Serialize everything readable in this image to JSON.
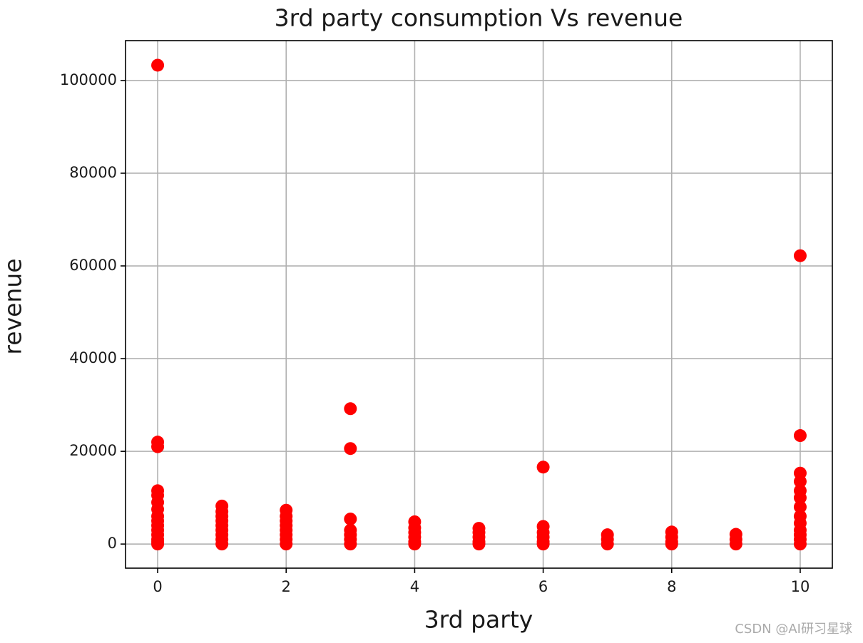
{
  "chart_data": {
    "type": "scatter",
    "title": "3rd party consumption Vs revenue",
    "x_label": "3rd party",
    "y_label": "revenue",
    "watermark": "CSDN @AI研习星球",
    "color": "#ff0000",
    "grid": true,
    "xlim": [
      -0.5,
      10.5
    ],
    "ylim": [
      -5200,
      108600
    ],
    "xticks": [
      0,
      2,
      4,
      6,
      8,
      10
    ],
    "yticks": [
      0,
      20000,
      40000,
      60000,
      80000,
      100000
    ],
    "x": [
      0,
      0,
      0,
      0,
      0,
      0,
      0,
      0,
      0,
      0,
      0,
      0,
      0,
      0,
      0,
      1,
      1,
      1,
      1,
      1,
      1,
      1,
      1,
      1,
      2,
      2,
      2,
      2,
      2,
      2,
      2,
      2,
      3,
      3,
      3,
      3,
      3,
      3,
      3,
      4,
      4,
      4,
      4,
      4,
      4,
      5,
      5,
      5,
      5,
      5,
      6,
      6,
      6,
      6,
      6,
      6,
      7,
      7,
      7,
      8,
      8,
      8,
      8,
      9,
      9,
      9,
      10,
      10,
      10,
      10,
      10,
      10,
      10,
      10,
      10,
      10,
      10,
      10,
      10
    ],
    "values": [
      103300,
      22000,
      21000,
      11500,
      10500,
      9000,
      7500,
      6000,
      5000,
      4000,
      3000,
      2000,
      1000,
      500,
      0,
      8200,
      7000,
      6000,
      5000,
      4000,
      3000,
      2000,
      1000,
      0,
      7300,
      6000,
      5000,
      4000,
      3000,
      2000,
      1000,
      0,
      29200,
      20600,
      5400,
      3000,
      2000,
      1000,
      0,
      4800,
      3500,
      2500,
      1500,
      500,
      0,
      3400,
      2500,
      1500,
      500,
      0,
      16600,
      3800,
      2500,
      1500,
      500,
      0,
      2000,
      1000,
      0,
      2600,
      1500,
      500,
      0,
      2100,
      1000,
      0,
      62200,
      23400,
      15300,
      13500,
      11500,
      10000,
      8000,
      6000,
      4500,
      3000,
      2000,
      1000,
      0
    ]
  }
}
